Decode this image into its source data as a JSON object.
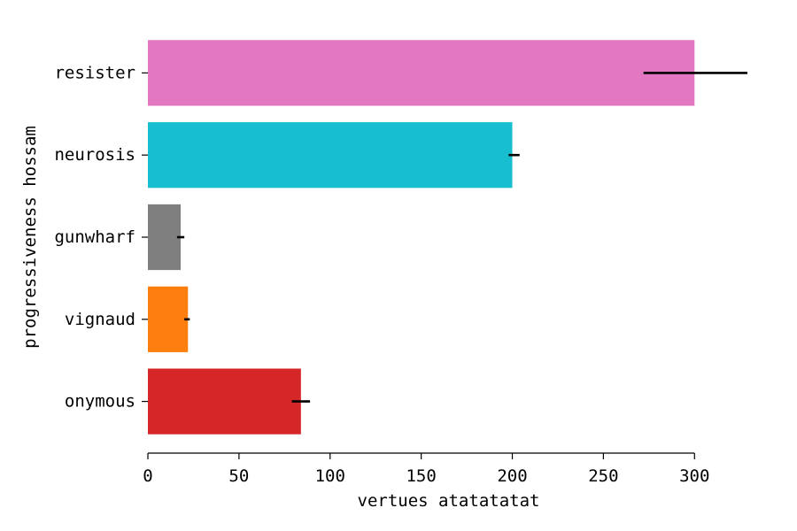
{
  "chart_data": {
    "type": "bar",
    "orientation": "horizontal",
    "title": "",
    "xlabel": "vertues atatatatat",
    "ylabel": "progressiveness hossam",
    "xlim": [
      0,
      330
    ],
    "xticks": [
      0,
      50,
      100,
      150,
      200,
      250,
      300
    ],
    "grid": false,
    "categories": [
      "resister",
      "neurosis",
      "gunwharf",
      "vignaud",
      "onymous"
    ],
    "values": [
      300,
      200,
      18,
      22,
      84
    ],
    "errors": [
      [
        272,
        329
      ],
      [
        198,
        204
      ],
      [
        16,
        20
      ],
      [
        20,
        23
      ],
      [
        79,
        89
      ]
    ],
    "colors": [
      "#e377c2",
      "#17becf",
      "#7f7f7f",
      "#ff7f0e",
      "#d62728"
    ],
    "error_color": "#000000"
  }
}
